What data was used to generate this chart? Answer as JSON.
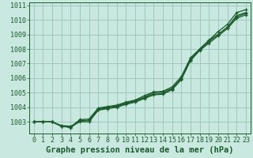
{
  "background_color": "#c8e8e0",
  "grid_color": "#a0c8c0",
  "line_color": "#1a5c2a",
  "xlabel": "Graphe pression niveau de la mer (hPa)",
  "xlabel_fontsize": 7.5,
  "tick_fontsize": 6.0,
  "xlim": [
    -0.5,
    23.5
  ],
  "ylim": [
    1002.2,
    1011.2
  ],
  "yticks": [
    1003,
    1004,
    1005,
    1006,
    1007,
    1008,
    1009,
    1010,
    1011
  ],
  "xticks": [
    0,
    1,
    2,
    3,
    4,
    5,
    6,
    7,
    8,
    9,
    10,
    11,
    12,
    13,
    14,
    15,
    16,
    17,
    18,
    19,
    20,
    21,
    22,
    23
  ],
  "series": [
    [
      1003.0,
      1003.0,
      1003.0,
      1002.7,
      1002.65,
      1003.1,
      1003.1,
      1003.9,
      1004.0,
      1004.1,
      1004.3,
      1004.45,
      1004.7,
      1005.0,
      1005.05,
      1005.3,
      1006.0,
      1007.3,
      1008.0,
      1008.6,
      1009.0,
      1009.5,
      1010.3,
      1010.5
    ],
    [
      1003.0,
      1003.0,
      1003.0,
      1002.7,
      1002.65,
      1003.15,
      1003.2,
      1003.95,
      1004.05,
      1004.15,
      1004.35,
      1004.5,
      1004.8,
      1005.05,
      1005.1,
      1005.4,
      1006.1,
      1007.4,
      1008.0,
      1008.6,
      1009.2,
      1009.7,
      1010.5,
      1010.7
    ],
    [
      1003.0,
      1003.0,
      1003.0,
      1002.7,
      1002.6,
      1003.05,
      1003.1,
      1003.85,
      1003.95,
      1004.05,
      1004.25,
      1004.4,
      1004.65,
      1004.9,
      1004.95,
      1005.25,
      1005.95,
      1007.25,
      1007.95,
      1008.5,
      1009.0,
      1009.5,
      1010.2,
      1010.45
    ],
    [
      1003.0,
      1003.0,
      1003.0,
      1002.75,
      1002.7,
      1003.0,
      1003.0,
      1003.8,
      1003.9,
      1004.0,
      1004.2,
      1004.35,
      1004.6,
      1004.85,
      1004.9,
      1005.2,
      1005.9,
      1007.2,
      1007.9,
      1008.4,
      1008.9,
      1009.4,
      1010.1,
      1010.35
    ]
  ]
}
